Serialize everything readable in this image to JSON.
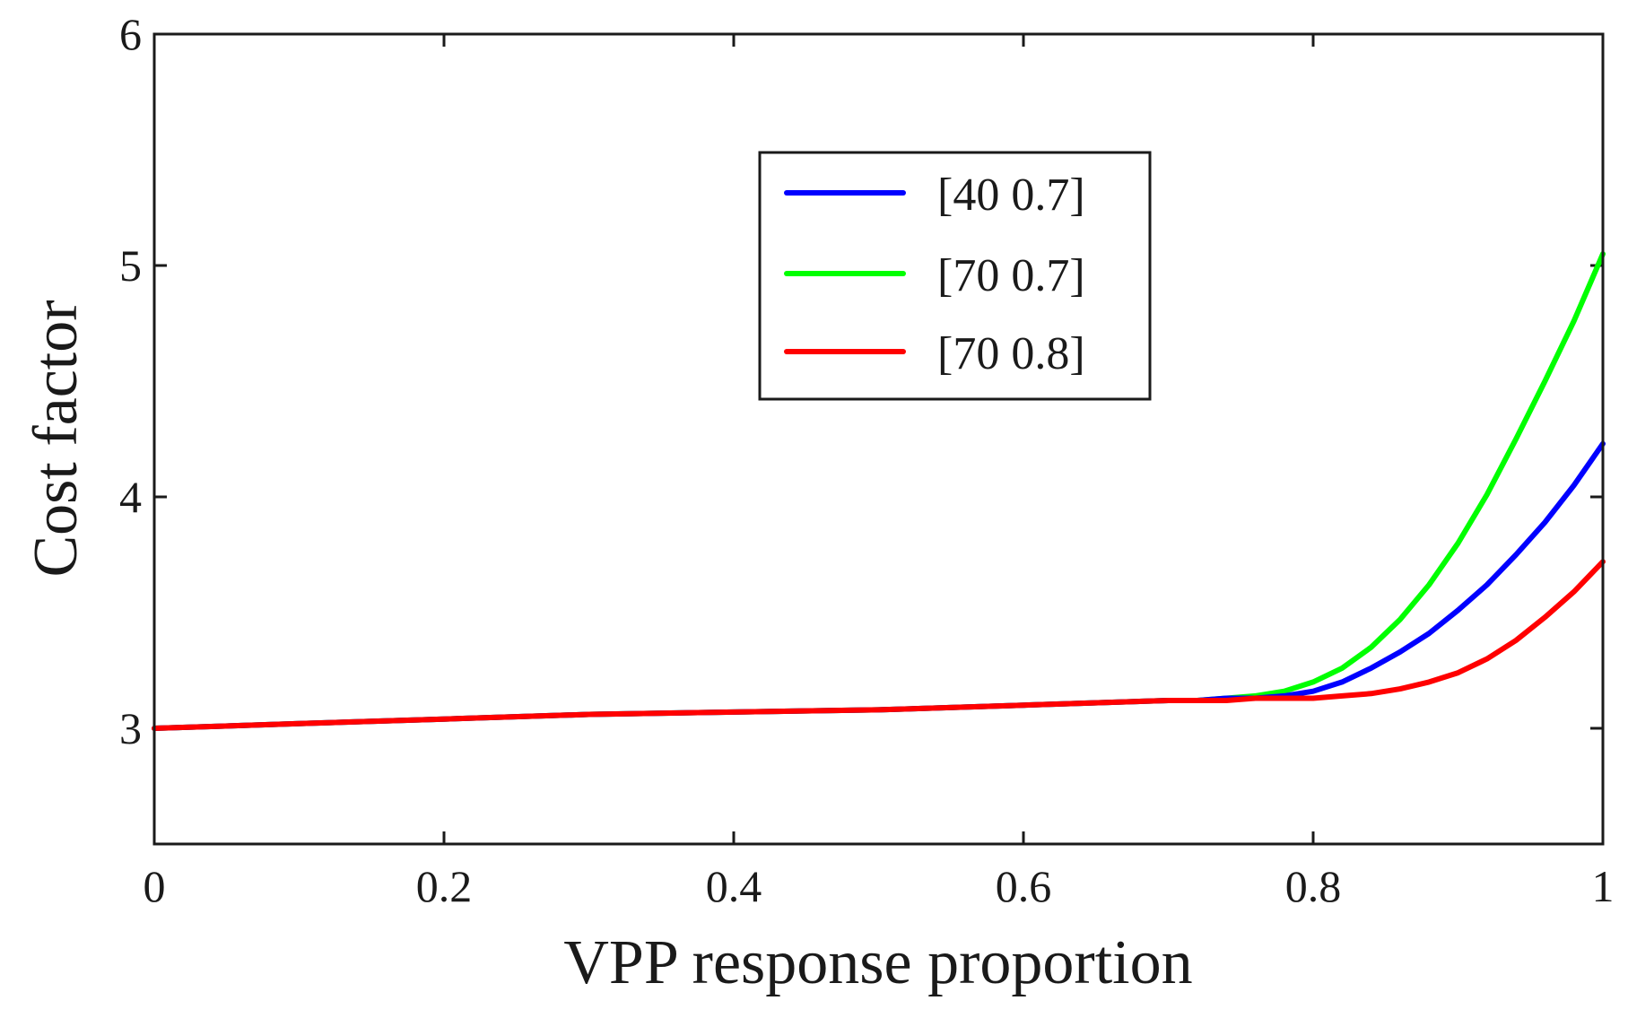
{
  "chart_data": {
    "type": "line",
    "title": "",
    "xlabel": "VPP response proportion",
    "ylabel": "Cost factor",
    "xlim": [
      0,
      1
    ],
    "ylim": [
      2.5,
      6
    ],
    "xticks": [
      0,
      0.2,
      0.4,
      0.6,
      0.8,
      1
    ],
    "xtick_labels": [
      "0",
      "0.2",
      "0.4",
      "0.6",
      "0.8",
      "1"
    ],
    "yticks": [
      3,
      4,
      5,
      6
    ],
    "ytick_labels": [
      "3",
      "4",
      "5",
      "6"
    ],
    "grid": false,
    "legend_position": "top-center",
    "x": [
      0,
      0.1,
      0.2,
      0.3,
      0.4,
      0.5,
      0.6,
      0.7,
      0.72,
      0.74,
      0.76,
      0.78,
      0.8,
      0.82,
      0.84,
      0.86,
      0.88,
      0.9,
      0.92,
      0.94,
      0.96,
      0.98,
      1.0
    ],
    "series": [
      {
        "name": "[40 0.7]",
        "color": "#0000ff",
        "values": [
          3.0,
          3.02,
          3.04,
          3.06,
          3.07,
          3.08,
          3.1,
          3.12,
          3.12,
          3.13,
          3.13,
          3.14,
          3.16,
          3.2,
          3.26,
          3.33,
          3.41,
          3.51,
          3.62,
          3.75,
          3.89,
          4.05,
          4.23
        ]
      },
      {
        "name": "[70 0.7]",
        "color": "#00ff00",
        "values": [
          3.0,
          3.02,
          3.04,
          3.06,
          3.07,
          3.08,
          3.1,
          3.12,
          3.12,
          3.13,
          3.14,
          3.16,
          3.2,
          3.26,
          3.35,
          3.47,
          3.62,
          3.8,
          4.01,
          4.25,
          4.5,
          4.76,
          5.05
        ]
      },
      {
        "name": "[70 0.8]",
        "color": "#ff0000",
        "values": [
          3.0,
          3.02,
          3.04,
          3.06,
          3.07,
          3.08,
          3.1,
          3.12,
          3.12,
          3.12,
          3.13,
          3.13,
          3.13,
          3.14,
          3.15,
          3.17,
          3.2,
          3.24,
          3.3,
          3.38,
          3.48,
          3.59,
          3.72
        ]
      }
    ]
  }
}
